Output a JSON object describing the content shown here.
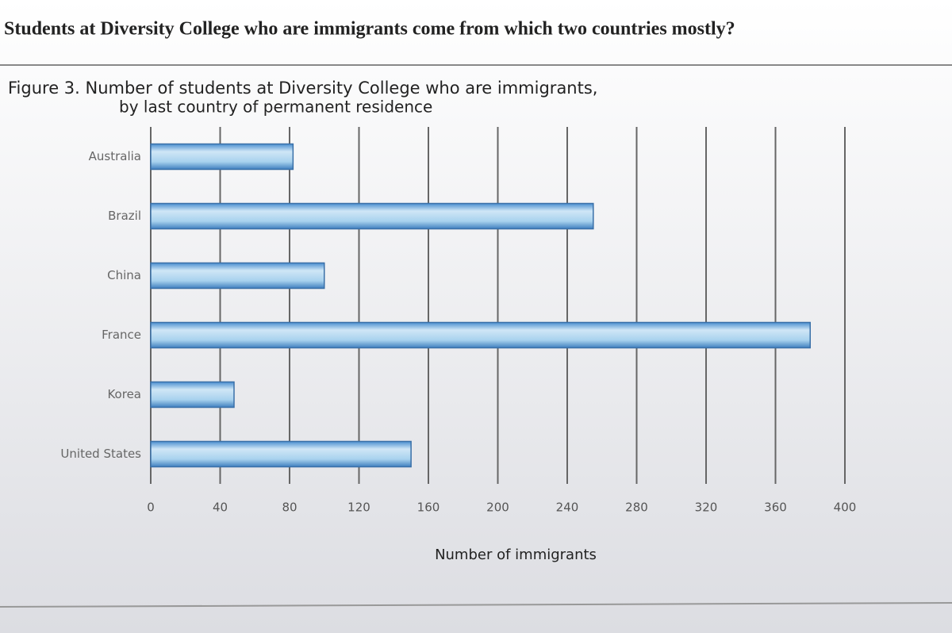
{
  "question": "Students at Diversity College who are immigrants come from which two countries mostly?",
  "chart_data": {
    "type": "hbar",
    "title": "Figure 3. Number of students at Diversity College who are immigrants,",
    "subtitle": "by last country of permanent residence",
    "categories": [
      "Australia",
      "Brazil",
      "China",
      "France",
      "Korea",
      "United States"
    ],
    "values": [
      82,
      255,
      100,
      380,
      48,
      150
    ],
    "color": "#9dcbe8",
    "xlabel": "Number of immigrants",
    "xlim": [
      0,
      400
    ],
    "xticks": [
      0,
      40,
      80,
      120,
      160,
      200,
      240,
      280,
      320,
      360,
      400
    ],
    "grid": true
  }
}
